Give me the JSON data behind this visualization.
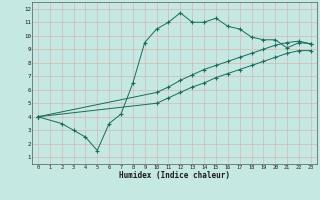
{
  "xlabel": "Humidex (Indice chaleur)",
  "bg_color": "#c5e8e2",
  "grid_color": "#d4b8b8",
  "line_color": "#1a6b5a",
  "xlim": [
    -0.5,
    23.5
  ],
  "ylim": [
    0.5,
    12.5
  ],
  "xticks": [
    0,
    1,
    2,
    3,
    4,
    5,
    6,
    7,
    8,
    9,
    10,
    11,
    12,
    13,
    14,
    15,
    16,
    17,
    18,
    19,
    20,
    21,
    22,
    23
  ],
  "yticks": [
    1,
    2,
    3,
    4,
    5,
    6,
    7,
    8,
    9,
    10,
    11,
    12
  ],
  "line1_x": [
    0,
    2,
    3,
    4,
    5,
    6,
    7,
    8,
    9,
    10,
    11,
    12,
    13,
    14,
    15,
    16,
    17,
    18,
    19,
    20,
    21,
    22,
    23
  ],
  "line1_y": [
    4.0,
    3.5,
    3.0,
    2.5,
    1.5,
    3.5,
    4.2,
    6.5,
    9.5,
    10.5,
    11.0,
    11.7,
    11.0,
    11.0,
    11.3,
    10.7,
    10.5,
    9.9,
    9.7,
    9.7,
    9.1,
    9.5,
    9.4
  ],
  "line2_x": [
    0,
    10,
    11,
    12,
    13,
    14,
    15,
    16,
    17,
    18,
    19,
    20,
    21,
    22,
    23
  ],
  "line2_y": [
    4.0,
    5.8,
    6.2,
    6.7,
    7.1,
    7.5,
    7.8,
    8.1,
    8.4,
    8.7,
    9.0,
    9.3,
    9.5,
    9.6,
    9.4
  ],
  "line3_x": [
    0,
    10,
    11,
    12,
    13,
    14,
    15,
    16,
    17,
    18,
    19,
    20,
    21,
    22,
    23
  ],
  "line3_y": [
    4.0,
    5.0,
    5.4,
    5.8,
    6.2,
    6.5,
    6.9,
    7.2,
    7.5,
    7.8,
    8.1,
    8.4,
    8.7,
    8.9,
    8.9
  ]
}
